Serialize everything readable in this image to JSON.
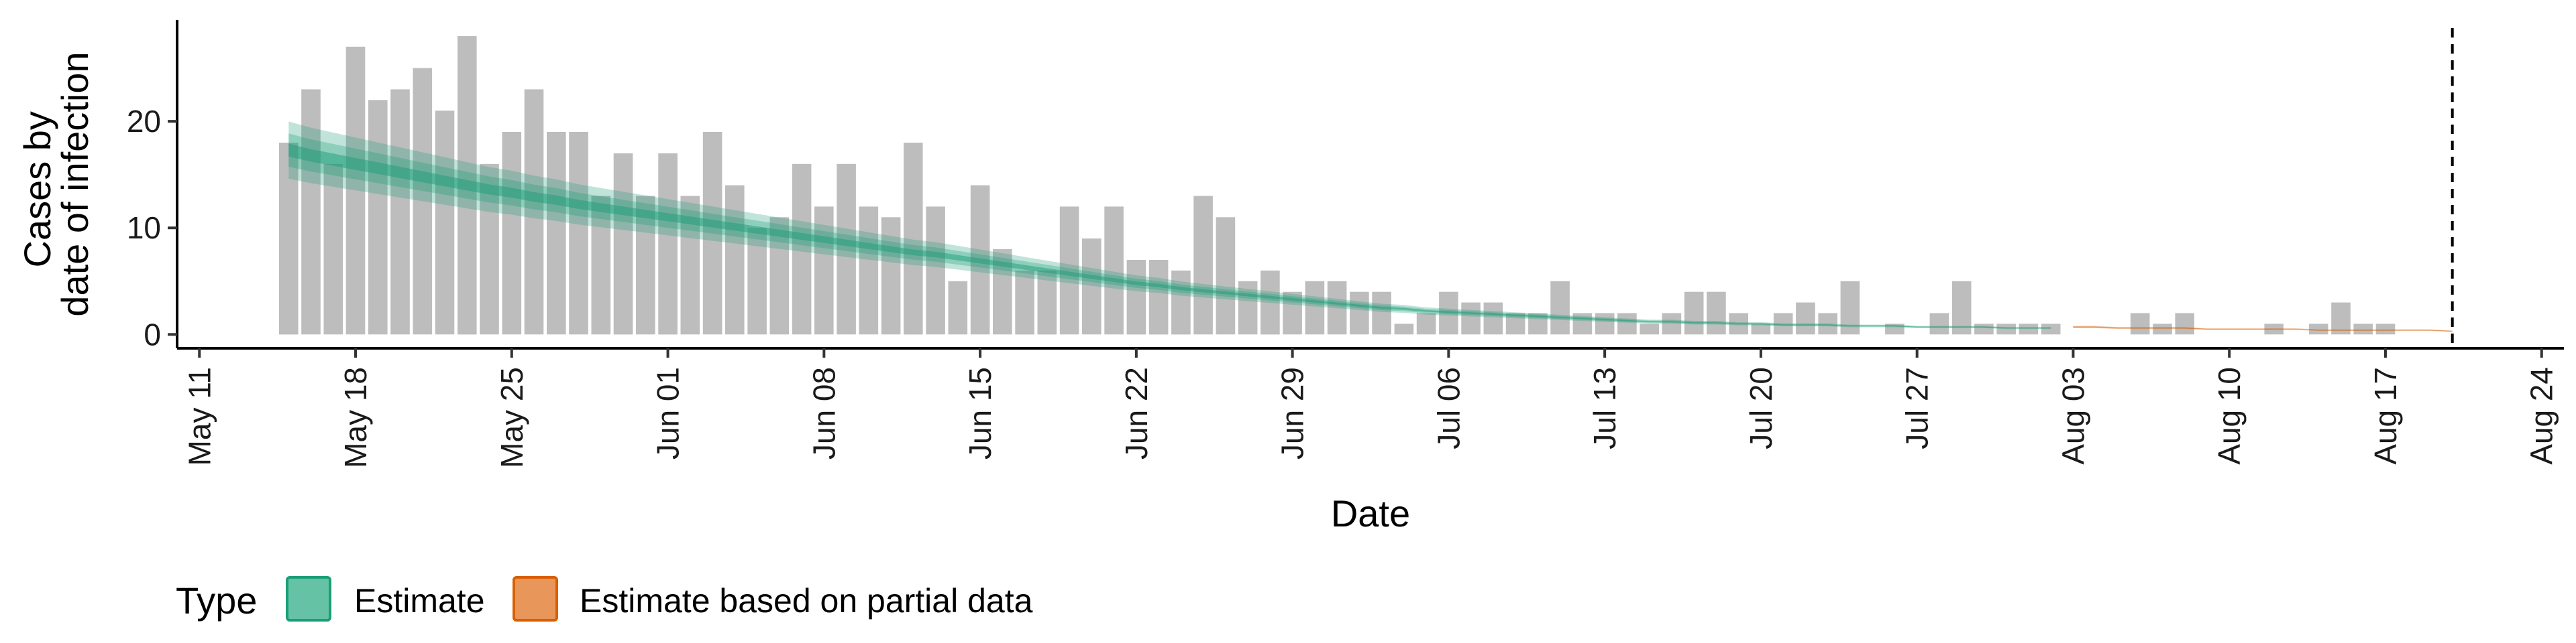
{
  "chart_data": {
    "type": "bar",
    "xlabel": "Date",
    "ylabel_lines": [
      "Cases by",
      "date of infection"
    ],
    "x_ticks": [
      "May 11",
      "May 18",
      "May 25",
      "Jun 01",
      "Jun 08",
      "Jun 15",
      "Jun 22",
      "Jun 29",
      "Jul 06",
      "Jul 13",
      "Jul 20",
      "Jul 27",
      "Aug 03",
      "Aug 10",
      "Aug 17",
      "Aug 24"
    ],
    "y_ticks": [
      0,
      10,
      20
    ],
    "xlim": [
      "2020-05-10",
      "2020-08-25"
    ],
    "ylim": [
      -1.3,
      29.5
    ],
    "bar_start_date": "2020-05-15",
    "bar_values": [
      18,
      23,
      16,
      27,
      22,
      23,
      25,
      21,
      28,
      16,
      19,
      23,
      19,
      19,
      13,
      17,
      13,
      17,
      13,
      19,
      14,
      10,
      11,
      16,
      12,
      16,
      12,
      11,
      18,
      12,
      5,
      14,
      8,
      6,
      6,
      12,
      9,
      12,
      7,
      7,
      6,
      13,
      11,
      5,
      6,
      4,
      5,
      5,
      4,
      4,
      1,
      2,
      4,
      3,
      3,
      2,
      2,
      5,
      2,
      2,
      2,
      1,
      2,
      4,
      4,
      2,
      1,
      2,
      3,
      2,
      5,
      0,
      1,
      0,
      2,
      5,
      1,
      1,
      1,
      1,
      0,
      0,
      0,
      2,
      1,
      2,
      0,
      0,
      0,
      1,
      0,
      1,
      3,
      1,
      1,
      0,
      0,
      0,
      0,
      0,
      0,
      0
    ],
    "estimate_start_date": "2020-05-15",
    "estimate_median": [
      17.3,
      16.8,
      16.4,
      16.0,
      15.6,
      15.2,
      14.8,
      14.4,
      14.0,
      13.6,
      13.3,
      12.9,
      12.6,
      12.2,
      11.9,
      11.6,
      11.3,
      11.0,
      10.7,
      10.4,
      10.1,
      9.8,
      9.5,
      9.2,
      8.9,
      8.6,
      8.3,
      8.0,
      7.7,
      7.5,
      7.2,
      6.9,
      6.6,
      6.3,
      6.0,
      5.7,
      5.4,
      5.1,
      4.8,
      4.6,
      4.3,
      4.1,
      3.9,
      3.7,
      3.5,
      3.3,
      3.1,
      2.9,
      2.7,
      2.5,
      2.4,
      2.2,
      2.1,
      2.0,
      1.9,
      1.8,
      1.7,
      1.6,
      1.5,
      1.4,
      1.3,
      1.2,
      1.2,
      1.1,
      1.1,
      1.0,
      1.0,
      0.9,
      0.9,
      0.9,
      0.8,
      0.8,
      0.8,
      0.7,
      0.7,
      0.7,
      0.7,
      0.6,
      0.6,
      0.6
    ],
    "partial_start_date": "2020-08-03",
    "partial_median": [
      0.7,
      0.7,
      0.6,
      0.6,
      0.6,
      0.6,
      0.5,
      0.5,
      0.5,
      0.5,
      0.5,
      0.4,
      0.4,
      0.4,
      0.4,
      0.4,
      0.4,
      0.3
    ],
    "vline_date": "2020-08-20",
    "legend": {
      "title": "Type",
      "items": [
        {
          "label": "Estimate",
          "fill": "#66c2a5",
          "stroke": "#1b9e77"
        },
        {
          "label": "Estimate based on partial data",
          "fill": "#e8965a",
          "stroke": "#d95f02"
        }
      ]
    },
    "colors": {
      "bar": "#bdbdbd",
      "estimate": "#1b9e77",
      "partial": "#d95f02",
      "axis": "#000000"
    }
  }
}
